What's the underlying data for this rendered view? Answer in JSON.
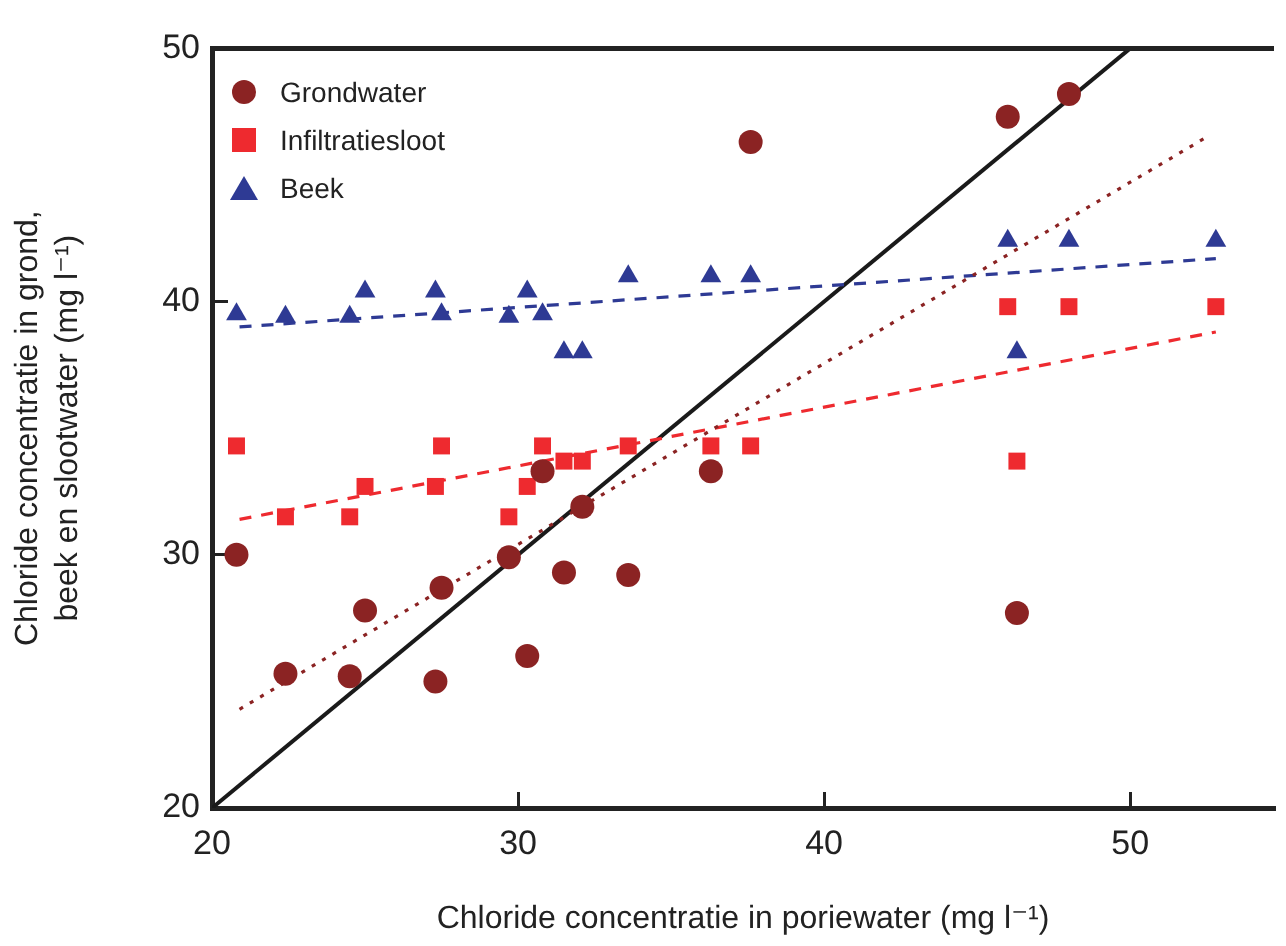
{
  "chart_data": {
    "type": "scatter",
    "xlabel": "Chloride concentratie in poriewater (mg l⁻¹)",
    "ylabel": [
      "Chloride concentratie in grond,",
      "beek en slootwater (mg l⁻¹)"
    ],
    "xlim": [
      20,
      54.7
    ],
    "ylim": [
      20,
      50
    ],
    "xticks": [
      20,
      30,
      40,
      50
    ],
    "yticks": [
      20,
      30,
      40,
      50
    ],
    "grid": false,
    "legend": "top left",
    "series": [
      {
        "name": "Grondwater",
        "type": "scatter",
        "marker": "circle",
        "color": "#8b2323",
        "x": [
          20.8,
          22.4,
          24.5,
          25.0,
          27.3,
          27.5,
          29.7,
          30.3,
          30.8,
          31.5,
          32.1,
          33.6,
          36.3,
          37.6,
          46.0,
          48.0,
          46.3
        ],
        "values": [
          30.0,
          25.3,
          25.2,
          27.8,
          25.0,
          28.7,
          29.9,
          26.0,
          33.3,
          29.3,
          31.9,
          29.2,
          33.3,
          46.3,
          47.3,
          48.2,
          27.7
        ]
      },
      {
        "name": "Infiltratiesloot",
        "type": "scatter",
        "marker": "square",
        "color": "#ee2a2f",
        "x": [
          20.8,
          22.4,
          24.5,
          25.0,
          27.3,
          27.5,
          29.7,
          30.3,
          30.8,
          31.5,
          32.1,
          33.6,
          36.3,
          37.6,
          46.0,
          48.0,
          52.8,
          46.3
        ],
        "values": [
          34.3,
          31.5,
          31.5,
          32.7,
          32.7,
          34.3,
          31.5,
          32.7,
          34.3,
          33.7,
          33.7,
          34.3,
          34.3,
          34.3,
          39.8,
          39.8,
          39.8,
          33.7
        ]
      },
      {
        "name": "Beek",
        "type": "scatter",
        "marker": "triangle",
        "color": "#2e3a94",
        "x": [
          20.8,
          22.4,
          24.5,
          25.0,
          27.3,
          27.5,
          29.7,
          30.3,
          30.8,
          31.5,
          32.1,
          33.6,
          36.3,
          37.6,
          46.0,
          48.0,
          52.8,
          46.3
        ],
        "values": [
          39.5,
          39.4,
          39.4,
          40.4,
          40.4,
          39.5,
          39.4,
          40.4,
          39.5,
          38.0,
          38.0,
          41.0,
          41.0,
          41.0,
          42.4,
          42.4,
          42.4,
          38.0
        ]
      },
      {
        "type": "line",
        "marker": "none",
        "line_style": "dotted",
        "color": "#8b2323",
        "x": [
          20.9,
          52.5
        ],
        "values": [
          23.9,
          46.5
        ]
      },
      {
        "type": "line",
        "marker": "none",
        "line_style": "dashed",
        "color": "#ee2a2f",
        "x": [
          20.9,
          52.8
        ],
        "values": [
          31.4,
          38.8
        ]
      },
      {
        "type": "line",
        "marker": "none",
        "line_style": "dashed",
        "color": "#2e3a94",
        "x": [
          20.9,
          52.8
        ],
        "values": [
          39.0,
          41.7
        ]
      },
      {
        "type": "line",
        "marker": "none",
        "line_style": "solid",
        "color": "#1a1a1a",
        "x": [
          20,
          50
        ],
        "values": [
          20,
          50
        ]
      }
    ]
  }
}
